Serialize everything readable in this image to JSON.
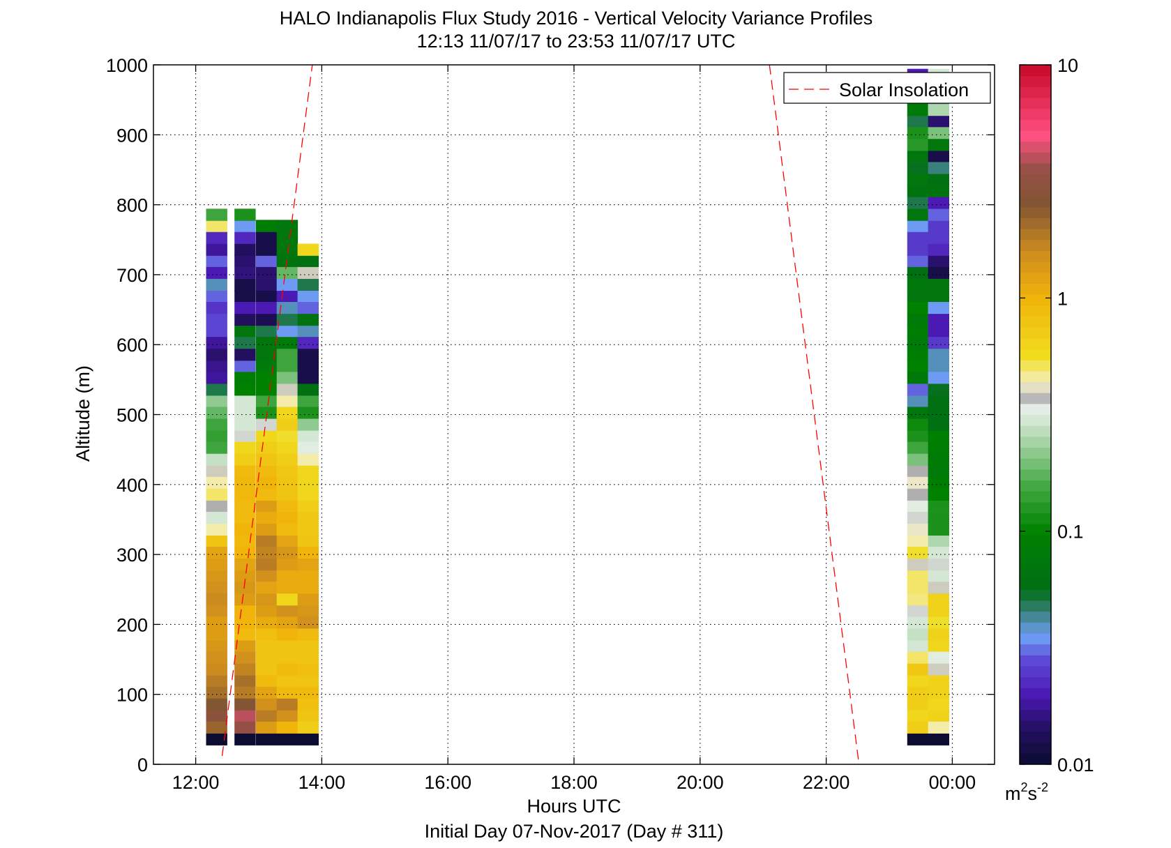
{
  "chart_data": {
    "type": "heatmap",
    "title": "HALO Indianapolis Flux Study 2016 - Vertical Velocity Variance Profiles",
    "subtitle": "12:13 11/07/17 to 23:53 11/07/17  UTC",
    "xlabel": "Hours UTC",
    "footer": "Initial Day 07-Nov-2017 (Day # 311)",
    "ylabel": "Altitude (m)",
    "xlim": [
      11.33,
      24.67
    ],
    "ylim": [
      0,
      1000
    ],
    "xticks": [
      12,
      14,
      16,
      18,
      20,
      22,
      24
    ],
    "xtick_labels": [
      "12:00",
      "14:00",
      "16:00",
      "18:00",
      "20:00",
      "22:00",
      "00:00"
    ],
    "yticks": [
      0,
      100,
      200,
      300,
      400,
      500,
      600,
      700,
      800,
      900,
      1000
    ],
    "grid": true,
    "colorbar": {
      "scale": "log",
      "min": 0.01,
      "max": 10,
      "tick_values": [
        0.01,
        0.1,
        1,
        10
      ],
      "tick_labels": [
        "0.01",
        "0.1",
        "1",
        "10"
      ],
      "unit_base": "m",
      "unit_sup1": "2",
      "unit_mid": "s",
      "unit_sup2": "-2"
    },
    "legend": {
      "position": "top-right",
      "entries": [
        {
          "label": "Solar Insolation",
          "color": "#ff0000",
          "style": "dashed"
        }
      ]
    },
    "solar_insolation_lines": [
      {
        "x": [
          12.42,
          13.85
        ],
        "y": [
          12,
          1000
        ]
      },
      {
        "x": [
          21.1,
          22.52
        ],
        "y": [
          1000,
          0
        ]
      }
    ],
    "y_bin_centers": [
      36,
      53,
      70,
      86,
      103,
      120,
      136,
      153,
      170,
      186,
      203,
      220,
      236,
      253,
      270,
      286,
      303,
      320,
      336,
      353,
      370,
      386,
      403,
      420,
      436,
      453,
      470,
      486,
      503,
      520,
      536,
      553,
      570,
      586,
      603,
      620,
      636,
      653,
      670,
      686,
      703,
      720,
      736,
      753,
      770,
      786,
      803,
      820,
      836,
      853,
      870,
      886,
      903,
      920,
      936,
      953,
      970,
      986
    ],
    "profiles": [
      {
        "x": 12.33,
        "values": [
          0.01,
          2.2,
          3.0,
          2.5,
          2.0,
          1.8,
          1.6,
          1.5,
          1.4,
          1.3,
          1.3,
          1.5,
          1.6,
          1.5,
          1.4,
          1.3,
          1.2,
          0.8,
          0.45,
          0.3,
          0.38,
          0.5,
          0.45,
          0.4,
          0.28,
          0.15,
          0.14,
          0.15,
          0.18,
          0.22,
          0.05,
          0.018,
          0.017,
          0.015,
          0.018,
          0.027,
          0.027,
          0.024,
          0.03,
          0.04,
          0.02,
          0.03,
          0.018,
          0.022,
          0.5,
          0.15
        ]
      },
      {
        "x": 12.78,
        "values": [
          0.01,
          3.5,
          4.0,
          2.6,
          1.8,
          2.0,
          1.7,
          1.5,
          1.3,
          0.9,
          1.0,
          1.0,
          1.3,
          1.4,
          1.3,
          1.2,
          1.0,
          0.95,
          1.0,
          0.9,
          0.9,
          0.95,
          0.95,
          0.9,
          0.7,
          0.6,
          0.35,
          0.3,
          0.3,
          0.3,
          0.1,
          0.09,
          0.03,
          0.014,
          0.05,
          0.07,
          0.014,
          0.02,
          0.012,
          0.012,
          0.016,
          0.015,
          0.014,
          0.022,
          0.035,
          0.12
        ]
      },
      {
        "x": 13.12,
        "values": [
          0.01,
          1.3,
          1.8,
          1.5,
          1.2,
          0.9,
          0.8,
          0.8,
          0.8,
          0.85,
          1.1,
          1.3,
          1.4,
          1.2,
          1.5,
          1.8,
          1.7,
          1.8,
          1.3,
          1.1,
          1.3,
          0.9,
          1.0,
          0.9,
          0.8,
          0.7,
          0.6,
          0.35,
          0.12,
          0.15,
          0.1,
          0.1,
          0.08,
          0.07,
          0.07,
          0.05,
          0.013,
          0.02,
          0.012,
          0.015,
          0.015,
          0.03,
          0.012,
          0.012,
          0.09
        ]
      },
      {
        "x": 13.45,
        "values": [
          0.01,
          1.0,
          1.5,
          1.8,
          0.9,
          0.8,
          0.9,
          0.8,
          0.8,
          1.0,
          1.2,
          1.5,
          0.6,
          1.1,
          1.1,
          1.3,
          1.4,
          1.2,
          0.9,
          1.0,
          0.9,
          0.8,
          0.8,
          0.75,
          0.7,
          0.6,
          0.55,
          0.7,
          0.6,
          0.45,
          0.4,
          0.2,
          0.15,
          0.15,
          0.08,
          0.035,
          0.05,
          0.04,
          0.02,
          0.035,
          0.18,
          0.065,
          0.07,
          0.07,
          0.07
        ]
      },
      {
        "x": 13.78,
        "values": [
          0.01,
          0.7,
          0.8,
          0.85,
          0.9,
          0.8,
          0.85,
          0.8,
          0.8,
          0.9,
          1.5,
          1.4,
          1.3,
          1.1,
          1.1,
          1.2,
          1.0,
          0.8,
          0.75,
          0.75,
          0.7,
          0.6,
          0.6,
          0.6,
          0.45,
          0.32,
          0.3,
          0.22,
          0.12,
          0.15,
          0.06,
          0.012,
          0.012,
          0.012,
          0.022,
          0.04,
          0.065,
          0.03,
          0.035,
          0.05,
          0.4,
          0.06,
          0.6
        ]
      },
      {
        "x": 23.45,
        "values": [
          0.01,
          0.7,
          0.6,
          0.7,
          0.7,
          0.6,
          0.75,
          0.5,
          0.3,
          0.28,
          0.3,
          0.35,
          0.48,
          0.5,
          0.5,
          0.4,
          0.55,
          0.45,
          0.42,
          0.35,
          0.32,
          0.38,
          0.42,
          0.38,
          0.2,
          0.15,
          0.12,
          0.11,
          0.07,
          0.04,
          0.03,
          0.075,
          0.1,
          0.09,
          0.08,
          0.09,
          0.08,
          0.1,
          0.07,
          0.075,
          0.06,
          0.03,
          0.025,
          0.025,
          0.035,
          0.07,
          0.05,
          0.065,
          0.07,
          0.055,
          0.07,
          0.13,
          0.12,
          0.05,
          0.08,
          0.07,
          0.07,
          0.02
        ]
      },
      {
        "x": 23.78,
        "values": [
          0.01,
          0.45,
          0.65,
          0.6,
          0.65,
          0.65,
          0.4,
          0.32,
          0.6,
          0.65,
          0.55,
          0.65,
          0.65,
          0.4,
          0.3,
          0.35,
          0.3,
          0.25,
          0.12,
          0.12,
          0.12,
          0.1,
          0.09,
          0.08,
          0.085,
          0.09,
          0.095,
          0.06,
          0.06,
          0.06,
          0.055,
          0.035,
          0.04,
          0.04,
          0.025,
          0.02,
          0.02,
          0.035,
          0.07,
          0.07,
          0.012,
          0.015,
          0.022,
          0.025,
          0.025,
          0.03,
          0.02,
          0.065,
          0.06,
          0.045,
          0.012,
          0.07,
          0.2,
          0.015,
          0.25,
          0.04,
          0.07,
          0.3
        ]
      }
    ]
  }
}
